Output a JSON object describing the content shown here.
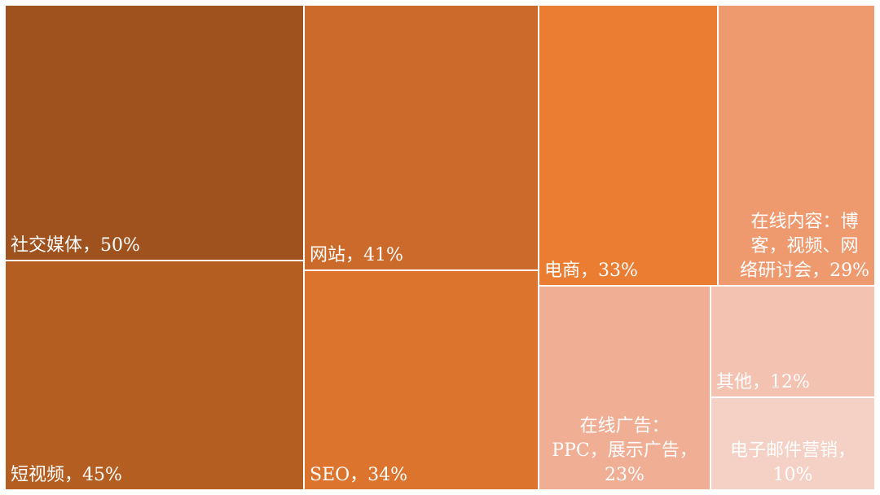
{
  "chart_data": {
    "type": "treemap",
    "unit": "%",
    "items": [
      {
        "id": "social",
        "label": "社交媒体，50%",
        "value": 50,
        "color": "#A0521E"
      },
      {
        "id": "shortvideo",
        "label": "短视频，45%",
        "value": 45,
        "color": "#B55E22"
      },
      {
        "id": "website",
        "label": "网站，41%",
        "value": 41,
        "color": "#CB6A2A"
      },
      {
        "id": "seo",
        "label": "SEO，34%",
        "value": 34,
        "color": "#DD742E"
      },
      {
        "id": "ecommerce",
        "label": "电商，33%",
        "value": 33,
        "color": "#EB7D33"
      },
      {
        "id": "content",
        "label": "在线内容：博\n客，视频、网\n络研讨会，29%",
        "value": 29,
        "color": "#EF996F"
      },
      {
        "id": "ads",
        "label": "在线广告：\nPPC，展示广告，\n23%",
        "value": 23,
        "color": "#F0AE95"
      },
      {
        "id": "other",
        "label": "其他，12%",
        "value": 12,
        "color": "#F3C2B1"
      },
      {
        "id": "email",
        "label": "电子邮件营销，\n10%",
        "value": 10,
        "color": "#F4D1C4"
      }
    ]
  }
}
